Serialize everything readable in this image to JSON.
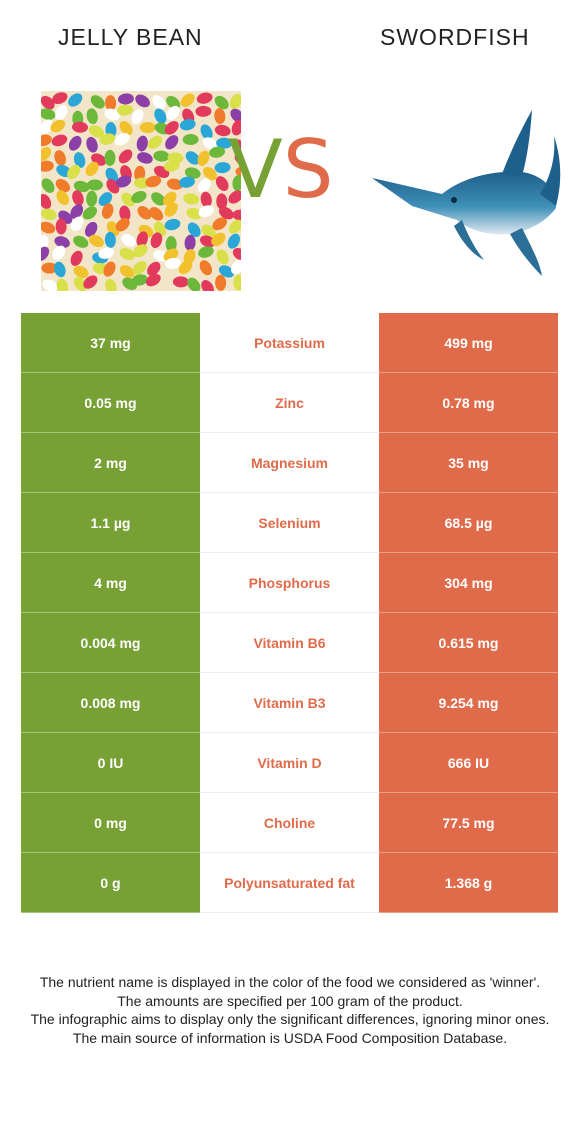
{
  "header": {
    "left_food": "JELLY BEAN",
    "right_food": "SWORDFISH",
    "vs_v": "V",
    "vs_s": "S"
  },
  "colors": {
    "winner_left": "#77a135",
    "winner_right": "#e06b4a",
    "nutrient_text": "#e06b4a"
  },
  "rows": [
    {
      "left": "37 mg",
      "nutrient": "Potassium",
      "right": "499 mg"
    },
    {
      "left": "0.05 mg",
      "nutrient": "Zinc",
      "right": "0.78 mg"
    },
    {
      "left": "2 mg",
      "nutrient": "Magnesium",
      "right": "35 mg"
    },
    {
      "left": "1.1 µg",
      "nutrient": "Selenium",
      "right": "68.5 µg"
    },
    {
      "left": "4 mg",
      "nutrient": "Phosphorus",
      "right": "304 mg"
    },
    {
      "left": "0.004 mg",
      "nutrient": "Vitamin B6",
      "right": "0.615 mg"
    },
    {
      "left": "0.008 mg",
      "nutrient": "Vitamin B3",
      "right": "9.254 mg"
    },
    {
      "left": "0 IU",
      "nutrient": "Vitamin D",
      "right": "666 IU"
    },
    {
      "left": "0 mg",
      "nutrient": "Choline",
      "right": "77.5 mg"
    },
    {
      "left": "0 g",
      "nutrient": "Polyunsaturated fat",
      "right": "1.368 g"
    }
  ],
  "footnote": {
    "line1": "The nutrient name is displayed in the color of the food we considered as 'winner'.",
    "line2": "The amounts are specified per 100 gram of the product.",
    "line3": "The infographic aims to display only the significant differences, ignoring minor ones.",
    "line4": "The main source of information is USDA Food Composition Database."
  }
}
